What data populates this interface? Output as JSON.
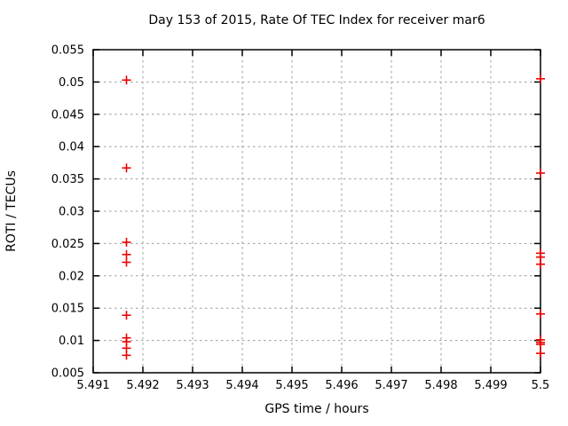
{
  "page": {
    "background": "#ffffff",
    "text_color": "#000000",
    "grid_color": "#9c9c9c",
    "border_color": "#000000"
  },
  "chart_data": {
    "type": "scatter",
    "title": "Day 153 of 2015, Rate Of TEC Index for receiver mar6",
    "xlabel": "GPS time / hours",
    "ylabel": "ROTI / TECUs",
    "xlim": [
      5.491,
      5.5
    ],
    "ylim": [
      0.005,
      0.055
    ],
    "grid": true,
    "legend_position": "none",
    "xticks": {
      "values": [
        5.491,
        5.492,
        5.493,
        5.494,
        5.495,
        5.496,
        5.497,
        5.498,
        5.499,
        5.5
      ],
      "labels": [
        "5.491",
        "5.492",
        "5.493",
        "5.494",
        "5.495",
        "5.496",
        "5.497",
        "5.498",
        "5.499",
        "5.5"
      ]
    },
    "yticks": {
      "values": [
        0.005,
        0.01,
        0.015,
        0.02,
        0.025,
        0.03,
        0.035,
        0.04,
        0.045,
        0.05,
        0.055
      ],
      "labels": [
        "0.005",
        "0.01",
        "0.015",
        "0.02",
        "0.025",
        "0.03",
        "0.035",
        "0.04",
        "0.045",
        "0.05",
        "0.055"
      ]
    },
    "series": [
      {
        "name": "ROTI",
        "marker": "plus",
        "color": "#ee0000",
        "points": [
          {
            "x": 5.49167,
            "y": 0.0503
          },
          {
            "x": 5.49167,
            "y": 0.0367
          },
          {
            "x": 5.49167,
            "y": 0.0252
          },
          {
            "x": 5.49167,
            "y": 0.0233
          },
          {
            "x": 5.49167,
            "y": 0.0221
          },
          {
            "x": 5.49167,
            "y": 0.0139
          },
          {
            "x": 5.49167,
            "y": 0.0104
          },
          {
            "x": 5.49167,
            "y": 0.0098
          },
          {
            "x": 5.49167,
            "y": 0.0088
          },
          {
            "x": 5.49167,
            "y": 0.0077
          },
          {
            "x": 5.5,
            "y": 0.0505
          },
          {
            "x": 5.5,
            "y": 0.0359
          },
          {
            "x": 5.5,
            "y": 0.0235
          },
          {
            "x": 5.5,
            "y": 0.0229
          },
          {
            "x": 5.5,
            "y": 0.0218
          },
          {
            "x": 5.5,
            "y": 0.0141
          },
          {
            "x": 5.5,
            "y": 0.0101
          },
          {
            "x": 5.5,
            "y": 0.0097
          },
          {
            "x": 5.5,
            "y": 0.0094
          },
          {
            "x": 5.5,
            "y": 0.008
          }
        ]
      }
    ]
  }
}
